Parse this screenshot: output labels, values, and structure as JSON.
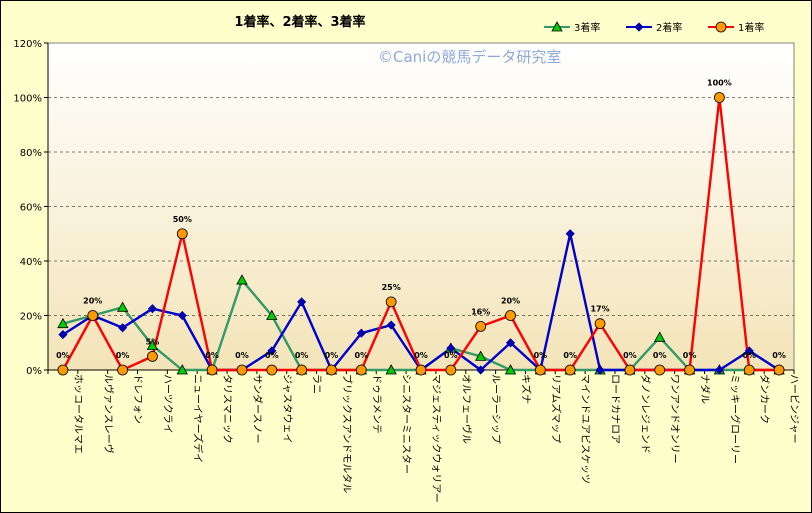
{
  "chart_data": {
    "type": "line",
    "title": "1着率、2着率、3着率",
    "watermark": "©Caniの競馬データ研究室",
    "ylim": [
      0,
      120
    ],
    "yticks": [
      0,
      20,
      40,
      60,
      80,
      100,
      120
    ],
    "ytick_labels": [
      "0%",
      "20%",
      "40%",
      "60%",
      "80%",
      "100%",
      "120%"
    ],
    "grid": "horizontal-dashed",
    "legend_position": "top-right",
    "categories": [
      "ホッコータルマエ",
      "ルヴァンスレーヴ",
      "ドレフォン",
      "ハーツクライ",
      "ニューイヤーズデイ",
      "タリスマニック",
      "サンダースノー",
      "ジャスタウェイ",
      "ラニ",
      "ブリックスアンドモルタル",
      "ドゥラメンテ",
      "シニスターミニスター",
      "マジェスティックウォリアー",
      "オルフェーヴル",
      "ルーラーシップ",
      "キズナ",
      "リアムズマップ",
      "マインドユアビスケッツ",
      "ロードカナロア",
      "ダノンレジェンド",
      "ワンアンドオンリー",
      "ナダル",
      "ミッキーグローリー",
      "ダンカーク",
      "ハービンジャー"
    ],
    "series": [
      {
        "name": "3着率",
        "color": "#339966",
        "marker": "triangle",
        "marker_fill": "#00cc00",
        "values": [
          17,
          20,
          23,
          9,
          0,
          0,
          33,
          20,
          0,
          0,
          0,
          0,
          0,
          8,
          5,
          0,
          0,
          0,
          0,
          0,
          12,
          0,
          0,
          0,
          0
        ]
      },
      {
        "name": "2着率",
        "color": "#0000cc",
        "marker": "diamond",
        "marker_fill": "#0000aa",
        "values": [
          13,
          20,
          15.5,
          22.5,
          20,
          0,
          0,
          7,
          25,
          0,
          13.5,
          16.5,
          0,
          8,
          0,
          10,
          0,
          50,
          0,
          0,
          0,
          0,
          0,
          7,
          0
        ]
      },
      {
        "name": "1着率",
        "color": "#ff0000",
        "marker": "circle",
        "marker_fill": "#ff9900",
        "values": [
          0,
          20,
          0,
          5,
          50,
          0,
          0,
          0,
          0,
          0,
          0,
          25,
          0,
          0,
          16,
          20,
          0,
          0,
          17,
          0,
          0,
          0,
          100,
          0,
          0
        ],
        "labels": [
          "0%",
          "20%",
          "0%",
          "5%",
          "50%",
          "0%",
          "0%",
          "0%",
          "0%",
          "0%",
          "0%",
          "25%",
          "0%",
          "0%",
          "16%",
          "20%",
          "0%",
          "0%",
          "17%",
          "0%",
          "0%",
          "0%",
          "100%",
          "0%",
          "0%"
        ]
      }
    ]
  }
}
